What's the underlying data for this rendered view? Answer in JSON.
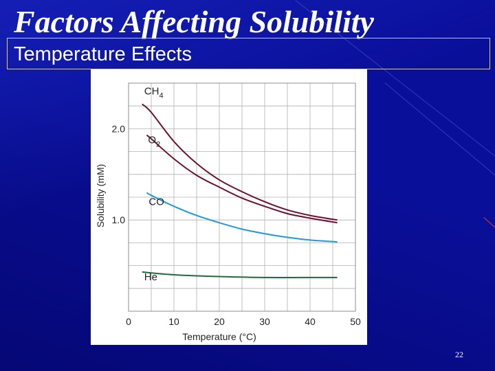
{
  "slide": {
    "title": "Factors Affecting Solubility",
    "subtitle": "Temperature Effects",
    "slide_number": "22"
  },
  "chart_data": {
    "type": "line",
    "title": "",
    "xlabel": "Temperature (°C)",
    "ylabel": "Solubility (mM)",
    "xlim": [
      0,
      50
    ],
    "ylim": [
      0,
      2.5
    ],
    "x_ticks": [
      "0",
      "10",
      "20",
      "30",
      "40",
      "50"
    ],
    "y_ticks": [
      "1.0",
      "2.0"
    ],
    "y_tick_values": [
      1.0,
      2.0
    ],
    "grid": true,
    "series": [
      {
        "name": "CH4",
        "label_main": "CH",
        "label_sub": "4",
        "color": "#6b1030",
        "x": [
          3,
          5,
          10,
          15,
          20,
          25,
          30,
          35,
          40,
          46
        ],
        "y": [
          2.27,
          2.18,
          1.86,
          1.62,
          1.44,
          1.31,
          1.2,
          1.11,
          1.05,
          1.0
        ]
      },
      {
        "name": "O2",
        "label_main": "O",
        "label_sub": "2",
        "color": "#6b1030",
        "x": [
          4,
          5,
          10,
          15,
          20,
          25,
          30,
          35,
          40,
          46
        ],
        "y": [
          1.93,
          1.89,
          1.67,
          1.49,
          1.36,
          1.24,
          1.15,
          1.07,
          1.02,
          0.97
        ]
      },
      {
        "name": "CO",
        "label_main": "CO",
        "label_sub": "",
        "color": "#1f9ad6",
        "x": [
          4,
          5,
          10,
          15,
          20,
          25,
          30,
          35,
          40,
          46
        ],
        "y": [
          1.3,
          1.27,
          1.15,
          1.05,
          0.97,
          0.9,
          0.85,
          0.81,
          0.78,
          0.76
        ]
      },
      {
        "name": "He",
        "label_main": "He",
        "label_sub": "",
        "color": "#1f6a3a",
        "x": [
          3,
          10,
          20,
          30,
          40,
          46
        ],
        "y": [
          0.43,
          0.4,
          0.38,
          0.37,
          0.37,
          0.37
        ]
      }
    ]
  },
  "colors": {
    "background": "#0a0f9a",
    "title_text": "#ffffff",
    "grid": "#b0b0b0"
  }
}
